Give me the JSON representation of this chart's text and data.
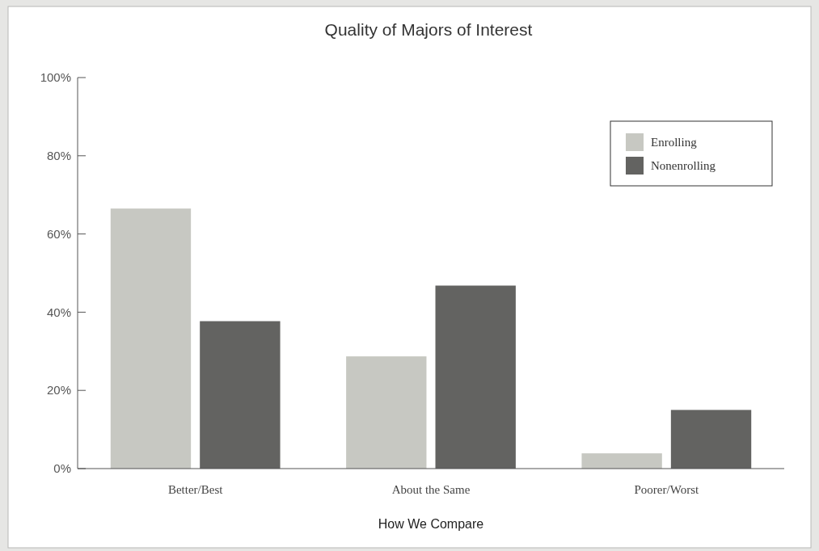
{
  "chart_data": {
    "type": "bar",
    "title": "Quality of Majors of Interest",
    "xlabel": "How We Compare",
    "categories": [
      "Better/Best",
      "About the Same",
      "Poorer/Worst"
    ],
    "series": [
      {
        "name": "Enrolling",
        "color": "#c7c8c2",
        "values": [
          66.5,
          28.7,
          3.9
        ]
      },
      {
        "name": "Nonenrolling",
        "color": "#636361",
        "values": [
          37.7,
          46.8,
          15
        ]
      }
    ],
    "ylim": [
      0,
      100
    ],
    "yticks": [
      {
        "value": 0,
        "label": "0%"
      },
      {
        "value": 20,
        "label": "20%"
      },
      {
        "value": 40,
        "label": "40%"
      },
      {
        "value": 60,
        "label": "60%"
      },
      {
        "value": 80,
        "label": "80%"
      },
      {
        "value": 100,
        "label": "100%"
      }
    ],
    "grid": false,
    "legend": "top right"
  }
}
